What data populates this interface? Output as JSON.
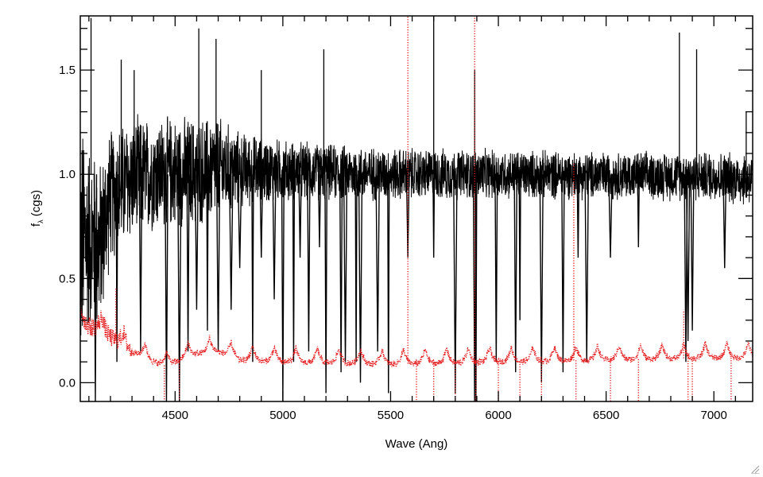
{
  "chart_data": {
    "type": "line",
    "title": "",
    "xlabel": "Wave (Ang)",
    "ylabel_main": "f",
    "ylabel_sub": "λ",
    "ylabel_rest": " (cgs)",
    "xlim": [
      4060,
      7180
    ],
    "ylim": [
      -0.09,
      1.76
    ],
    "x_ticks": [
      4500,
      5000,
      5500,
      6000,
      6500,
      7000
    ],
    "x_tick_labels": [
      "4500",
      "5000",
      "5500",
      "6000",
      "6500",
      "7000"
    ],
    "y_ticks": [
      0.0,
      0.5,
      1.0,
      1.5
    ],
    "y_tick_labels": [
      "0.0",
      "0.5",
      "1.0",
      "1.5"
    ],
    "x_minor_step": 100,
    "y_minor_step": 0.1,
    "grid": false,
    "legend": "none",
    "series": [
      {
        "style": "solid",
        "color": "#000000",
        "continuum_level": 1.0,
        "envelope": {
          "x": [
            4060,
            4100,
            4150,
            4200,
            4300,
            4400,
            4500,
            4600,
            4700,
            4800,
            5000,
            5200,
            5500,
            6000,
            6500,
            7000,
            7180
          ],
          "low": [
            -0.05,
            0.2,
            0.2,
            0.55,
            0.65,
            0.7,
            0.72,
            0.72,
            0.75,
            0.82,
            0.85,
            0.86,
            0.86,
            0.87,
            0.87,
            0.86,
            0.83
          ],
          "high": [
            1.35,
            1.2,
            1.1,
            1.25,
            1.3,
            1.3,
            1.3,
            1.3,
            1.3,
            1.22,
            1.18,
            1.16,
            1.14,
            1.13,
            1.12,
            1.12,
            1.12
          ]
        },
        "absorption_lines": [
          {
            "x": 4130,
            "depth_to": -0.09
          },
          {
            "x": 4230,
            "depth_to": 0.1
          },
          {
            "x": 4340,
            "depth_to": 0.15
          },
          {
            "x": 4460,
            "depth_to": -0.09
          },
          {
            "x": 4520,
            "depth_to": -0.09
          },
          {
            "x": 4560,
            "depth_to": 0.15
          },
          {
            "x": 4600,
            "depth_to": 0.35
          },
          {
            "x": 4650,
            "depth_to": 0.25
          },
          {
            "x": 4700,
            "depth_to": 0.15
          },
          {
            "x": 4760,
            "depth_to": 0.35
          },
          {
            "x": 4800,
            "depth_to": 0.55
          },
          {
            "x": 4860,
            "depth_to": 0.1
          },
          {
            "x": 4900,
            "depth_to": 0.6
          },
          {
            "x": 4960,
            "depth_to": 0.4
          },
          {
            "x": 5000,
            "depth_to": -0.09
          },
          {
            "x": 5050,
            "depth_to": 0.1
          },
          {
            "x": 5080,
            "depth_to": 0.6
          },
          {
            "x": 5120,
            "depth_to": 0.15
          },
          {
            "x": 5170,
            "depth_to": 0.65
          },
          {
            "x": 5200,
            "depth_to": -0.05
          },
          {
            "x": 5270,
            "depth_to": 0.05
          },
          {
            "x": 5290,
            "depth_to": 0.1
          },
          {
            "x": 5340,
            "depth_to": 0.1
          },
          {
            "x": 5360,
            "depth_to": 0.0
          },
          {
            "x": 5440,
            "depth_to": 0.15
          },
          {
            "x": 5490,
            "depth_to": -0.05
          },
          {
            "x": 5580,
            "depth_to": 0.6
          },
          {
            "x": 5700,
            "depth_to": 0.6
          },
          {
            "x": 5800,
            "depth_to": -0.05
          },
          {
            "x": 5890,
            "depth_to": -0.09
          },
          {
            "x": 5896,
            "depth_to": -0.09
          },
          {
            "x": 5990,
            "depth_to": 0.1
          },
          {
            "x": 6080,
            "depth_to": 0.05
          },
          {
            "x": 6100,
            "depth_to": 0.3
          },
          {
            "x": 6200,
            "depth_to": 0.0
          },
          {
            "x": 6300,
            "depth_to": 0.05
          },
          {
            "x": 6370,
            "depth_to": 0.6
          },
          {
            "x": 6410,
            "depth_to": 0.1
          },
          {
            "x": 6520,
            "depth_to": 0.6
          },
          {
            "x": 6650,
            "depth_to": 0.65
          },
          {
            "x": 6870,
            "depth_to": 0.1
          },
          {
            "x": 6880,
            "depth_to": 0.2
          },
          {
            "x": 6900,
            "depth_to": 0.25
          },
          {
            "x": 7050,
            "depth_to": 0.55
          }
        ],
        "emission_spikes": [
          {
            "x": 4110,
            "to": 1.75
          },
          {
            "x": 4250,
            "to": 1.55
          },
          {
            "x": 4310,
            "to": 1.5
          },
          {
            "x": 4610,
            "to": 1.7
          },
          {
            "x": 4690,
            "to": 1.65
          },
          {
            "x": 4900,
            "to": 1.5
          },
          {
            "x": 5190,
            "to": 1.6
          },
          {
            "x": 5700,
            "to": 1.76
          },
          {
            "x": 5890,
            "to": 1.5
          },
          {
            "x": 6840,
            "to": 1.68
          },
          {
            "x": 6920,
            "to": 1.6
          },
          {
            "x": 7150,
            "to": 1.3
          }
        ]
      },
      {
        "style": "dotted",
        "color": "#e41a1c",
        "baseline": {
          "x": [
            4060,
            4100,
            4150,
            4200,
            4300,
            4400,
            4460,
            4500,
            4600,
            4700,
            4800,
            5000,
            5500,
            6000,
            6500,
            7000,
            7180
          ],
          "y": [
            0.3,
            0.27,
            0.26,
            0.22,
            0.15,
            0.1,
            0.08,
            0.1,
            0.14,
            0.15,
            0.11,
            0.1,
            0.09,
            0.1,
            0.11,
            0.12,
            0.12
          ]
        },
        "bump_spacing": 100,
        "bump_height": 0.07,
        "spikes": [
          {
            "x": 4225,
            "to": 0.45
          },
          {
            "x": 4450,
            "to": -0.09
          },
          {
            "x": 4520,
            "to": -0.09
          },
          {
            "x": 5580,
            "to": 1.76
          },
          {
            "x": 5620,
            "to": -0.09
          },
          {
            "x": 5700,
            "to": -0.09
          },
          {
            "x": 5800,
            "to": -0.09
          },
          {
            "x": 5890,
            "to": 1.76
          },
          {
            "x": 5895,
            "to": -0.09
          },
          {
            "x": 6000,
            "to": -0.09
          },
          {
            "x": 6100,
            "to": -0.09
          },
          {
            "x": 6200,
            "to": -0.09
          },
          {
            "x": 6350,
            "to": 1.05
          },
          {
            "x": 6360,
            "to": -0.09
          },
          {
            "x": 6520,
            "to": -0.09
          },
          {
            "x": 6650,
            "to": -0.09
          },
          {
            "x": 6860,
            "to": 0.35
          },
          {
            "x": 6880,
            "to": -0.09
          },
          {
            "x": 6900,
            "to": -0.09
          },
          {
            "x": 7080,
            "to": -0.09
          }
        ]
      }
    ]
  }
}
